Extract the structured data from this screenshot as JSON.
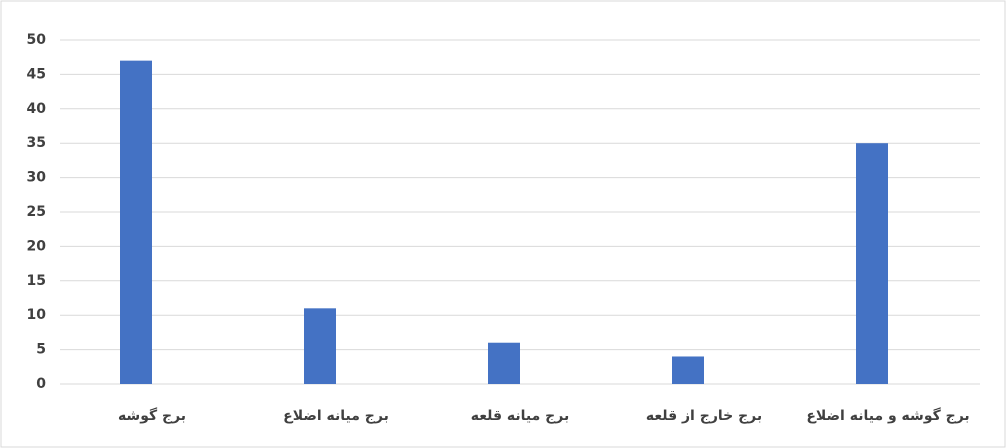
{
  "chart_data": {
    "type": "bar",
    "categories": [
      "برج گوشه",
      "برج میانه اضلاع",
      "برج میانه قلعه",
      "برج خارج از قلعه",
      "برج گوشه و میانه اضلاع"
    ],
    "values": [
      47,
      11,
      6,
      4,
      35
    ],
    "color": "#4472c4",
    "ylim": [
      0,
      50
    ],
    "yticks": [
      0,
      5,
      10,
      15,
      20,
      25,
      30,
      35,
      40,
      45,
      50
    ],
    "grid": true
  }
}
